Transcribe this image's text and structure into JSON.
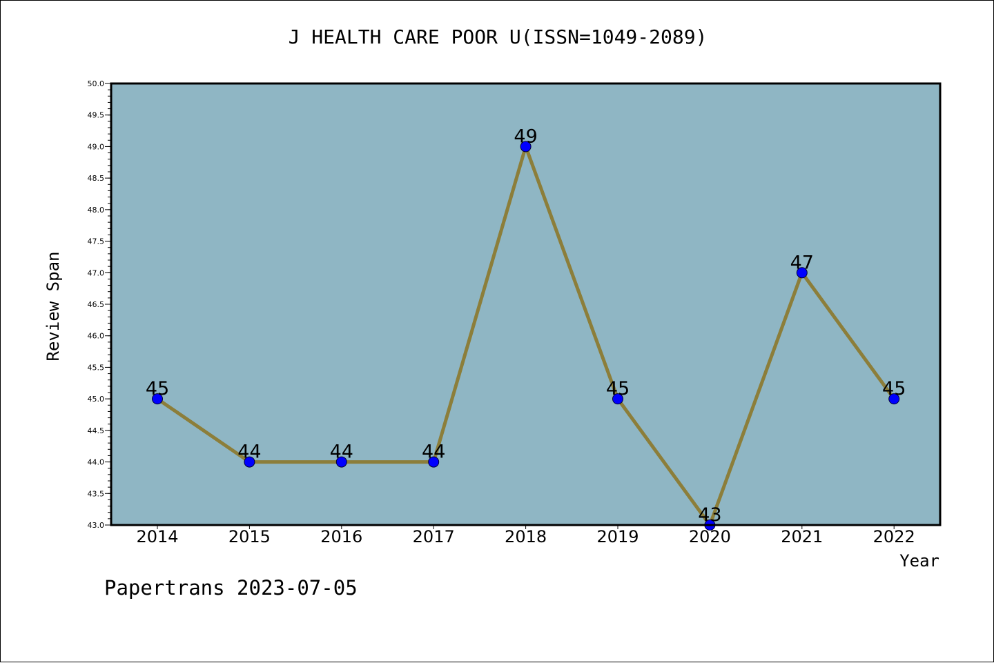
{
  "chart_data": {
    "type": "line",
    "title": "J HEALTH CARE POOR U(ISSN=1049-2089)",
    "xlabel": "Year",
    "ylabel": "Review Span",
    "categories": [
      "2014",
      "2015",
      "2016",
      "2017",
      "2018",
      "2019",
      "2020",
      "2021",
      "2022"
    ],
    "values": [
      45,
      44,
      44,
      44,
      49,
      45,
      43,
      47,
      45
    ],
    "data_labels": [
      "45",
      "44",
      "44",
      "44",
      "49",
      "45",
      "43",
      "47",
      "45"
    ],
    "ylim": [
      43.0,
      50.0
    ],
    "y_ticks": [
      "43.0",
      "43.5",
      "44.0",
      "44.5",
      "45.0",
      "45.5",
      "46.0",
      "46.5",
      "47.0",
      "47.5",
      "48.0",
      "48.5",
      "49.0",
      "49.5",
      "50.0"
    ],
    "grid": false,
    "legend": "none",
    "colors": {
      "plot_background": "#8fb6c4",
      "line": "#8c7e3a",
      "marker": "#0000ff",
      "axis": "#000000"
    }
  },
  "footer": {
    "note": "Papertrans 2023-07-05"
  }
}
